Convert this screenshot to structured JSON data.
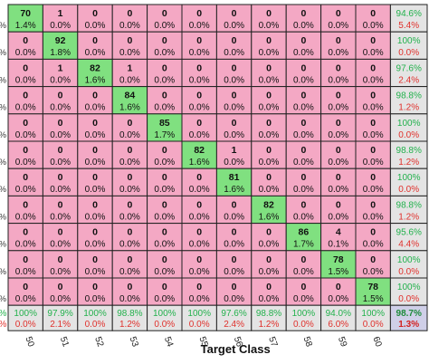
{
  "chart_data": {
    "type": "heatmap",
    "xlabel": "Target Class",
    "x_ticks": [
      "50",
      "51",
      "52",
      "53",
      "54",
      "55",
      "56",
      "57",
      "58",
      "59",
      "60"
    ],
    "cells": [
      [
        {
          "c": "70",
          "p": "1.4%"
        },
        {
          "c": "1",
          "p": "0.0%"
        },
        {
          "c": "0",
          "p": "0.0%"
        },
        {
          "c": "0",
          "p": "0.0%"
        },
        {
          "c": "0",
          "p": "0.0%"
        },
        {
          "c": "0",
          "p": "0.0%"
        },
        {
          "c": "0",
          "p": "0.0%"
        },
        {
          "c": "0",
          "p": "0.0%"
        },
        {
          "c": "0",
          "p": "0.0%"
        },
        {
          "c": "0",
          "p": "0.0%"
        },
        {
          "c": "0",
          "p": "0.0%"
        }
      ],
      [
        {
          "c": "0",
          "p": "0.0%"
        },
        {
          "c": "92",
          "p": "1.8%"
        },
        {
          "c": "0",
          "p": "0.0%"
        },
        {
          "c": "0",
          "p": "0.0%"
        },
        {
          "c": "0",
          "p": "0.0%"
        },
        {
          "c": "0",
          "p": "0.0%"
        },
        {
          "c": "0",
          "p": "0.0%"
        },
        {
          "c": "0",
          "p": "0.0%"
        },
        {
          "c": "0",
          "p": "0.0%"
        },
        {
          "c": "0",
          "p": "0.0%"
        },
        {
          "c": "0",
          "p": "0.0%"
        }
      ],
      [
        {
          "c": "0",
          "p": "0.0%"
        },
        {
          "c": "1",
          "p": "0.0%"
        },
        {
          "c": "82",
          "p": "1.6%"
        },
        {
          "c": "1",
          "p": "0.0%"
        },
        {
          "c": "0",
          "p": "0.0%"
        },
        {
          "c": "0",
          "p": "0.0%"
        },
        {
          "c": "0",
          "p": "0.0%"
        },
        {
          "c": "0",
          "p": "0.0%"
        },
        {
          "c": "0",
          "p": "0.0%"
        },
        {
          "c": "0",
          "p": "0.0%"
        },
        {
          "c": "0",
          "p": "0.0%"
        }
      ],
      [
        {
          "c": "0",
          "p": "0.0%"
        },
        {
          "c": "0",
          "p": "0.0%"
        },
        {
          "c": "0",
          "p": "0.0%"
        },
        {
          "c": "84",
          "p": "1.6%"
        },
        {
          "c": "0",
          "p": "0.0%"
        },
        {
          "c": "0",
          "p": "0.0%"
        },
        {
          "c": "0",
          "p": "0.0%"
        },
        {
          "c": "0",
          "p": "0.0%"
        },
        {
          "c": "0",
          "p": "0.0%"
        },
        {
          "c": "0",
          "p": "0.0%"
        },
        {
          "c": "0",
          "p": "0.0%"
        }
      ],
      [
        {
          "c": "0",
          "p": "0.0%"
        },
        {
          "c": "0",
          "p": "0.0%"
        },
        {
          "c": "0",
          "p": "0.0%"
        },
        {
          "c": "0",
          "p": "0.0%"
        },
        {
          "c": "85",
          "p": "1.7%"
        },
        {
          "c": "0",
          "p": "0.0%"
        },
        {
          "c": "0",
          "p": "0.0%"
        },
        {
          "c": "0",
          "p": "0.0%"
        },
        {
          "c": "0",
          "p": "0.0%"
        },
        {
          "c": "0",
          "p": "0.0%"
        },
        {
          "c": "0",
          "p": "0.0%"
        }
      ],
      [
        {
          "c": "0",
          "p": "0.0%"
        },
        {
          "c": "0",
          "p": "0.0%"
        },
        {
          "c": "0",
          "p": "0.0%"
        },
        {
          "c": "0",
          "p": "0.0%"
        },
        {
          "c": "0",
          "p": "0.0%"
        },
        {
          "c": "82",
          "p": "1.6%"
        },
        {
          "c": "1",
          "p": "0.0%"
        },
        {
          "c": "0",
          "p": "0.0%"
        },
        {
          "c": "0",
          "p": "0.0%"
        },
        {
          "c": "0",
          "p": "0.0%"
        },
        {
          "c": "0",
          "p": "0.0%"
        }
      ],
      [
        {
          "c": "0",
          "p": "0.0%"
        },
        {
          "c": "0",
          "p": "0.0%"
        },
        {
          "c": "0",
          "p": "0.0%"
        },
        {
          "c": "0",
          "p": "0.0%"
        },
        {
          "c": "0",
          "p": "0.0%"
        },
        {
          "c": "0",
          "p": "0.0%"
        },
        {
          "c": "81",
          "p": "1.6%"
        },
        {
          "c": "0",
          "p": "0.0%"
        },
        {
          "c": "0",
          "p": "0.0%"
        },
        {
          "c": "0",
          "p": "0.0%"
        },
        {
          "c": "0",
          "p": "0.0%"
        }
      ],
      [
        {
          "c": "0",
          "p": "0.0%"
        },
        {
          "c": "0",
          "p": "0.0%"
        },
        {
          "c": "0",
          "p": "0.0%"
        },
        {
          "c": "0",
          "p": "0.0%"
        },
        {
          "c": "0",
          "p": "0.0%"
        },
        {
          "c": "0",
          "p": "0.0%"
        },
        {
          "c": "0",
          "p": "0.0%"
        },
        {
          "c": "82",
          "p": "1.6%"
        },
        {
          "c": "0",
          "p": "0.0%"
        },
        {
          "c": "0",
          "p": "0.0%"
        },
        {
          "c": "0",
          "p": "0.0%"
        }
      ],
      [
        {
          "c": "0",
          "p": "0.0%"
        },
        {
          "c": "0",
          "p": "0.0%"
        },
        {
          "c": "0",
          "p": "0.0%"
        },
        {
          "c": "0",
          "p": "0.0%"
        },
        {
          "c": "0",
          "p": "0.0%"
        },
        {
          "c": "0",
          "p": "0.0%"
        },
        {
          "c": "0",
          "p": "0.0%"
        },
        {
          "c": "0",
          "p": "0.0%"
        },
        {
          "c": "86",
          "p": "1.7%"
        },
        {
          "c": "4",
          "p": "0.1%"
        },
        {
          "c": "0",
          "p": "0.0%"
        }
      ],
      [
        {
          "c": "0",
          "p": "0.0%"
        },
        {
          "c": "0",
          "p": "0.0%"
        },
        {
          "c": "0",
          "p": "0.0%"
        },
        {
          "c": "0",
          "p": "0.0%"
        },
        {
          "c": "0",
          "p": "0.0%"
        },
        {
          "c": "0",
          "p": "0.0%"
        },
        {
          "c": "0",
          "p": "0.0%"
        },
        {
          "c": "0",
          "p": "0.0%"
        },
        {
          "c": "0",
          "p": "0.0%"
        },
        {
          "c": "78",
          "p": "1.5%"
        },
        {
          "c": "0",
          "p": "0.0%"
        }
      ],
      [
        {
          "c": "0",
          "p": "0.0%"
        },
        {
          "c": "0",
          "p": "0.0%"
        },
        {
          "c": "0",
          "p": "0.0%"
        },
        {
          "c": "0",
          "p": "0.0%"
        },
        {
          "c": "0",
          "p": "0.0%"
        },
        {
          "c": "0",
          "p": "0.0%"
        },
        {
          "c": "0",
          "p": "0.0%"
        },
        {
          "c": "0",
          "p": "0.0%"
        },
        {
          "c": "0",
          "p": "0.0%"
        },
        {
          "c": "0",
          "p": "0.0%"
        },
        {
          "c": "78",
          "p": "1.5%"
        }
      ]
    ],
    "row_summary": [
      {
        "top": "94.6%",
        "bot": "5.4%"
      },
      {
        "top": "100%",
        "bot": "0.0%"
      },
      {
        "top": "97.6%",
        "bot": "2.4%"
      },
      {
        "top": "98.8%",
        "bot": "1.2%"
      },
      {
        "top": "100%",
        "bot": "0.0%"
      },
      {
        "top": "98.8%",
        "bot": "1.2%"
      },
      {
        "top": "100%",
        "bot": "0.0%"
      },
      {
        "top": "98.8%",
        "bot": "1.2%"
      },
      {
        "top": "95.6%",
        "bot": "4.4%"
      },
      {
        "top": "100%",
        "bot": "0.0%"
      },
      {
        "top": "100%",
        "bot": "0.0%"
      }
    ],
    "col_summary": [
      {
        "top": "100%",
        "bot": "0.0%"
      },
      {
        "top": "97.9%",
        "bot": "2.1%"
      },
      {
        "top": "100%",
        "bot": "0.0%"
      },
      {
        "top": "98.8%",
        "bot": "1.2%"
      },
      {
        "top": "100%",
        "bot": "0.0%"
      },
      {
        "top": "100%",
        "bot": "0.0%"
      },
      {
        "top": "97.6%",
        "bot": "2.4%"
      },
      {
        "top": "98.8%",
        "bot": "1.2%"
      },
      {
        "top": "100%",
        "bot": "0.0%"
      },
      {
        "top": "94.0%",
        "bot": "6.0%"
      },
      {
        "top": "100%",
        "bot": "0.0%"
      }
    ],
    "overall": {
      "top": "98.7%",
      "bot": "1.3%"
    },
    "left_edge": {
      "row_mark": "%",
      "summary_top": "%",
      "summary_bot": "%"
    },
    "colors": {
      "diagonal": "#80e080",
      "off_diagonal": "#f4a8c4",
      "summary": "#e4e4e4",
      "overall": "#cfcfe8",
      "text_green": "#22b14c",
      "text_red": "#e0312c"
    }
  }
}
